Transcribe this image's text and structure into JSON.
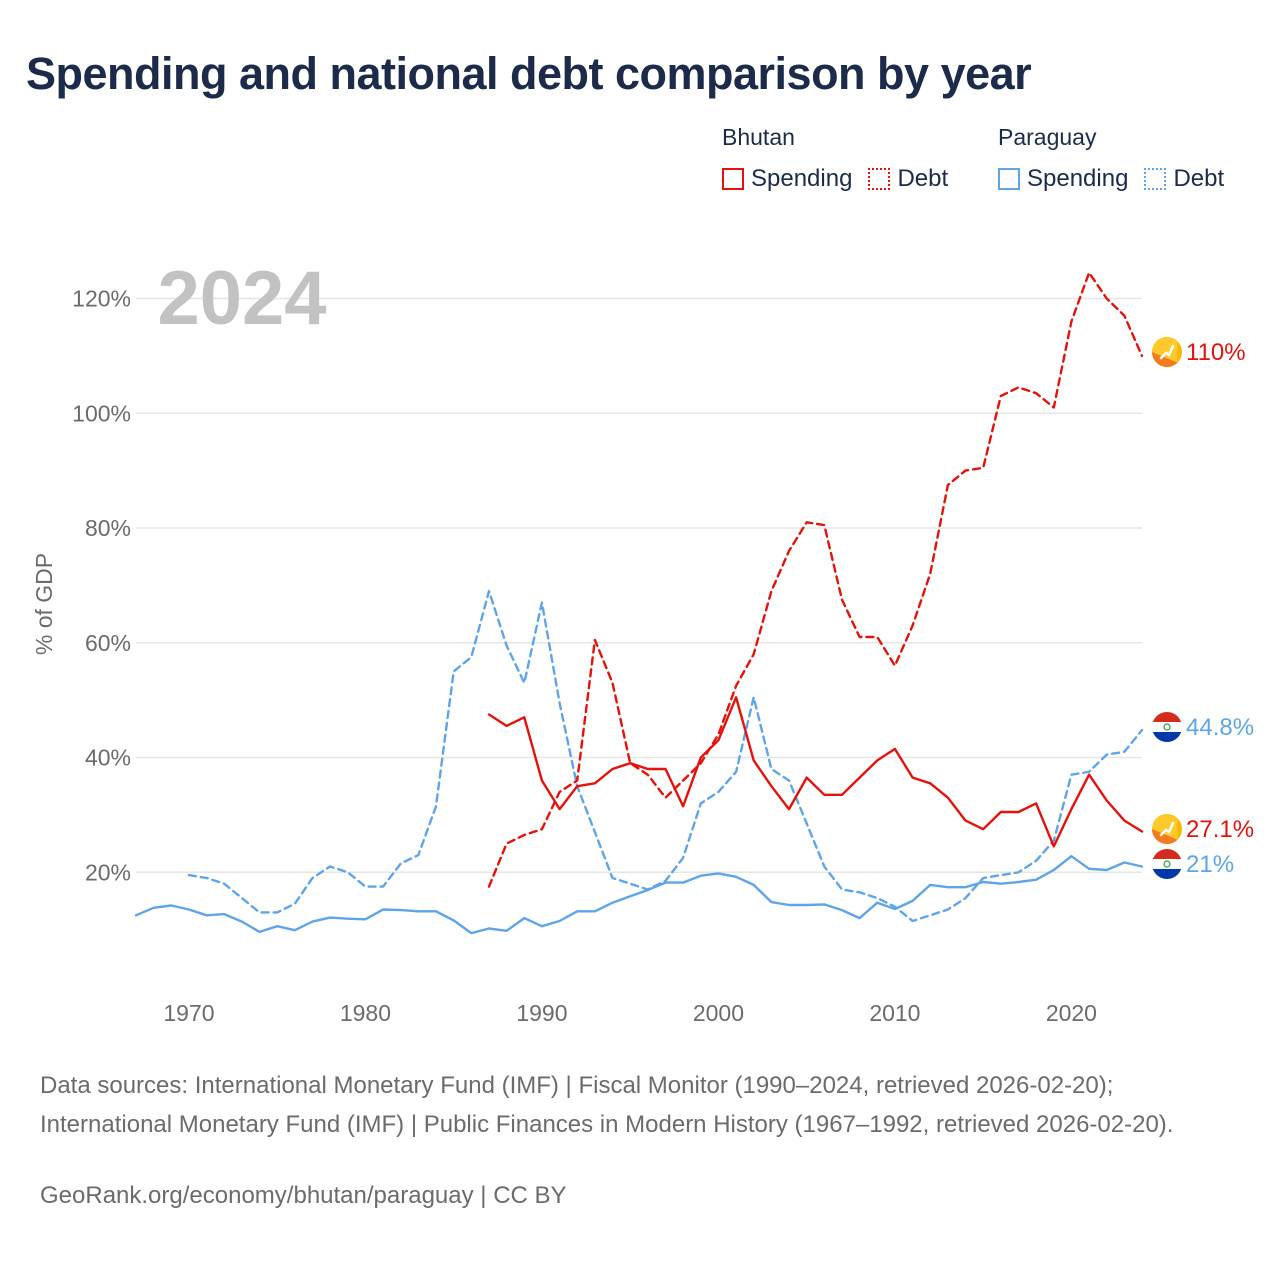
{
  "title": "Spending and national debt comparison by year",
  "legend": {
    "groups": [
      {
        "name": "Bhutan",
        "color": "#e3120b",
        "items": [
          {
            "label": "Spending",
            "style": "solid"
          },
          {
            "label": "Debt",
            "style": "dotted"
          }
        ]
      },
      {
        "name": "Paraguay",
        "color": "#5fa4e6",
        "items": [
          {
            "label": "Spending",
            "style": "solid"
          },
          {
            "label": "Debt",
            "style": "dotted"
          }
        ]
      }
    ]
  },
  "chart_data": {
    "type": "line",
    "title": "Spending and national debt comparison by year",
    "year_label": "2024",
    "ylabel": "% of GDP",
    "xlabel": "",
    "xlim": [
      1967,
      2024
    ],
    "ylim": [
      0,
      125
    ],
    "yticks": [
      20,
      40,
      60,
      80,
      100,
      120
    ],
    "ytick_labels": [
      "20%",
      "40%",
      "60%",
      "80%",
      "100%",
      "120%"
    ],
    "xticks": [
      1970,
      1980,
      1990,
      2000,
      2010,
      2020
    ],
    "xtick_labels": [
      "1970",
      "1980",
      "1990",
      "2000",
      "2010",
      "2020"
    ],
    "series": [
      {
        "name": "Bhutan Debt",
        "country": "Bhutan",
        "kind": "debt",
        "color": "#e3120b",
        "dashed": true,
        "end_label": "110%",
        "flag": "bhutan",
        "x": [
          1987,
          1988,
          1989,
          1990,
          1991,
          1992,
          1993,
          1994,
          1995,
          1996,
          1997,
          1998,
          1999,
          2000,
          2001,
          2002,
          2003,
          2004,
          2005,
          2006,
          2007,
          2008,
          2009,
          2010,
          2011,
          2012,
          2013,
          2014,
          2015,
          2016,
          2017,
          2018,
          2019,
          2020,
          2021,
          2022,
          2023,
          2024
        ],
        "values": [
          17.5,
          25,
          26.5,
          27.5,
          34,
          36,
          60.5,
          53,
          39,
          37,
          33,
          36,
          39,
          44,
          52.5,
          58,
          69,
          76,
          81,
          80.5,
          67.5,
          61,
          61,
          56,
          63,
          72,
          87.5,
          90,
          90.5,
          103,
          104.5,
          103.5,
          101,
          116,
          124.5,
          120,
          117,
          110
        ]
      },
      {
        "name": "Bhutan Spending",
        "country": "Bhutan",
        "kind": "spending",
        "color": "#e3120b",
        "dashed": false,
        "end_label": "27.1%",
        "flag": "bhutan",
        "x": [
          1987,
          1988,
          1989,
          1990,
          1991,
          1992,
          1993,
          1994,
          1995,
          1996,
          1997,
          1998,
          1999,
          2000,
          2001,
          2002,
          2003,
          2004,
          2005,
          2006,
          2007,
          2008,
          2009,
          2010,
          2011,
          2012,
          2013,
          2014,
          2015,
          2016,
          2017,
          2018,
          2019,
          2020,
          2021,
          2022,
          2023,
          2024
        ],
        "values": [
          47.5,
          45.5,
          47,
          36,
          31,
          35,
          35.5,
          38,
          39,
          38,
          38,
          31.5,
          40,
          43,
          50.5,
          39.5,
          35,
          31,
          36.5,
          33.5,
          33.5,
          36.5,
          39.5,
          41.5,
          36.5,
          35.5,
          33,
          29,
          27.5,
          30.5,
          30.5,
          32,
          24.5,
          31,
          37,
          32.5,
          29,
          27.1
        ]
      },
      {
        "name": "Paraguay Debt",
        "country": "Paraguay",
        "kind": "debt",
        "color": "#5fa4e6",
        "dashed": true,
        "end_label": "44.8%",
        "flag": "paraguay",
        "x": [
          1970,
          1971,
          1972,
          1973,
          1974,
          1975,
          1976,
          1977,
          1978,
          1979,
          1980,
          1981,
          1982,
          1983,
          1984,
          1985,
          1986,
          1987,
          1988,
          1989,
          1990,
          1991,
          1992,
          1993,
          1994,
          1995,
          1996,
          1997,
          1998,
          1999,
          2000,
          2001,
          2002,
          2003,
          2004,
          2005,
          2006,
          2007,
          2008,
          2009,
          2010,
          2011,
          2012,
          2013,
          2014,
          2015,
          2016,
          2017,
          2018,
          2019,
          2020,
          2021,
          2022,
          2023,
          2024
        ],
        "values": [
          19.5,
          19,
          18,
          15.5,
          13,
          13,
          14.5,
          19,
          21,
          20,
          17.5,
          17.5,
          21.5,
          23,
          31.5,
          55,
          57.5,
          69,
          59.5,
          53,
          67,
          49.5,
          35,
          27,
          19,
          18,
          17,
          18.5,
          22.5,
          32,
          34,
          37.5,
          50.5,
          38,
          36,
          28.5,
          21,
          17,
          16.5,
          15.5,
          14,
          11.5,
          12.5,
          13.5,
          15.5,
          19,
          19.5,
          20,
          22,
          25.5,
          37,
          37.5,
          40.5,
          41,
          44.8
        ]
      },
      {
        "name": "Paraguay Spending",
        "country": "Paraguay",
        "kind": "spending",
        "color": "#5fa4e6",
        "dashed": false,
        "end_label": "21%",
        "flag": "paraguay",
        "x": [
          1967,
          1968,
          1969,
          1970,
          1971,
          1972,
          1973,
          1974,
          1975,
          1976,
          1977,
          1978,
          1979,
          1980,
          1981,
          1982,
          1983,
          1984,
          1985,
          1986,
          1987,
          1988,
          1989,
          1990,
          1991,
          1992,
          1993,
          1994,
          1995,
          1996,
          1997,
          1998,
          1999,
          2000,
          2001,
          2002,
          2003,
          2004,
          2005,
          2006,
          2007,
          2008,
          2009,
          2010,
          2011,
          2012,
          2013,
          2014,
          2015,
          2016,
          2017,
          2018,
          2019,
          2020,
          2021,
          2022,
          2023,
          2024
        ],
        "values": [
          12.5,
          13.8,
          14.2,
          13.5,
          12.5,
          12.7,
          11.4,
          9.6,
          10.6,
          9.9,
          11.4,
          12.1,
          11.9,
          11.8,
          13.5,
          13.4,
          13.2,
          13.2,
          11.6,
          9.4,
          10.2,
          9.8,
          12,
          10.6,
          11.5,
          13.2,
          13.2,
          14.7,
          15.8,
          16.9,
          18.2,
          18.2,
          19.4,
          19.8,
          19.2,
          17.8,
          14.8,
          14.3,
          14.3,
          14.4,
          13.4,
          12,
          14.7,
          13.6,
          15,
          17.8,
          17.4,
          17.4,
          18.3,
          18,
          18.3,
          18.7,
          20.4,
          22.8,
          20.6,
          20.4,
          21.7,
          21
        ]
      }
    ]
  },
  "sources": "Data sources: International Monetary Fund (IMF) | Fiscal Monitor (1990–2024, retrieved 2026-02-20); International Monetary Fund (IMF) | Public Finances in Modern History (1967–1992, retrieved 2026-02-20).",
  "credit": "GeoRank.org/economy/bhutan/paraguay | CC BY"
}
